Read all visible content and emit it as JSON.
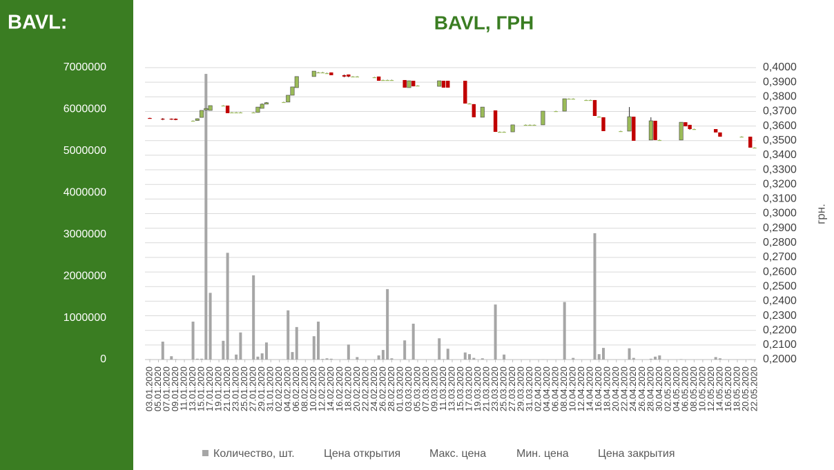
{
  "sidebar_title": "BAVL:",
  "chart_data": {
    "type": "candlestick",
    "title": "BAVL, ГРН",
    "y2label": "грн.",
    "up_color": "#9bbb59",
    "down_color": "#c00000",
    "grid": true,
    "legend": "bottom",
    "xlim": [
      "03.01.2020",
      "22.05.2020"
    ],
    "xticks": [
      "03.01.2020",
      "05.01.2020",
      "07.01.2020",
      "09.01.2020",
      "11.01.2020",
      "13.01.2020",
      "15.01.2020",
      "17.01.2020",
      "19.01.2020",
      "21.01.2020",
      "23.01.2020",
      "25.01.2020",
      "27.01.2020",
      "29.01.2020",
      "31.01.2020",
      "02.02.2020",
      "04.02.2020",
      "06.02.2020",
      "08.02.2020",
      "10.02.2020",
      "12.02.2020",
      "14.02.2020",
      "16.02.2020",
      "18.02.2020",
      "20.02.2020",
      "22.02.2020",
      "24.02.2020",
      "26.02.2020",
      "28.02.2020",
      "01.03.2020",
      "03.03.2020",
      "05.03.2020",
      "07.03.2020",
      "09.03.2020",
      "11.03.2020",
      "13.03.2020",
      "15.03.2020",
      "17.03.2020",
      "19.03.2020",
      "21.03.2020",
      "23.03.2020",
      "25.03.2020",
      "27.03.2020",
      "29.03.2020",
      "31.03.2020",
      "02.04.2020",
      "04.04.2020",
      "06.04.2020",
      "08.04.2020",
      "10.04.2020",
      "12.04.2020",
      "14.04.2020",
      "16.04.2020",
      "18.04.2020",
      "20.04.2020",
      "22.04.2020",
      "24.04.2020",
      "26.04.2020",
      "28.04.2020",
      "30.04.2020",
      "02.05.2020",
      "04.05.2020",
      "06.05.2020",
      "08.05.2020",
      "10.05.2020",
      "12.05.2020",
      "14.05.2020",
      "16.05.2020",
      "18.05.2020",
      "20.05.2020",
      "22.05.2020"
    ],
    "ylim": [
      0,
      7000000
    ],
    "yticks": [
      0,
      1000000,
      2000000,
      3000000,
      4000000,
      5000000,
      6000000,
      7000000
    ],
    "y2lim": [
      0.2,
      0.4
    ],
    "y2ticks": [
      {
        "value": 0.2,
        "label": "0,2000"
      },
      {
        "value": 0.21,
        "label": "0,2100"
      },
      {
        "value": 0.22,
        "label": "0,2200"
      },
      {
        "value": 0.23,
        "label": "0,2300"
      },
      {
        "value": 0.24,
        "label": "0,2400"
      },
      {
        "value": 0.25,
        "label": "0,2500"
      },
      {
        "value": 0.26,
        "label": "0,2600"
      },
      {
        "value": 0.27,
        "label": "0,2700"
      },
      {
        "value": 0.28,
        "label": "0,2800"
      },
      {
        "value": 0.29,
        "label": "0,2900"
      },
      {
        "value": 0.3,
        "label": "0,3000"
      },
      {
        "value": 0.31,
        "label": "0,3100"
      },
      {
        "value": 0.32,
        "label": "0,3200"
      },
      {
        "value": 0.33,
        "label": "0,3300"
      },
      {
        "value": 0.34,
        "label": "0,3400"
      },
      {
        "value": 0.35,
        "label": "0,3500"
      },
      {
        "value": 0.36,
        "label": "0,3600"
      },
      {
        "value": 0.37,
        "label": "0,3700"
      },
      {
        "value": 0.38,
        "label": "0,3800"
      },
      {
        "value": 0.39,
        "label": "0,3900"
      },
      {
        "value": 0.4,
        "label": "0,4000"
      }
    ],
    "x": [
      "03.01.2020",
      "06.01.2020",
      "08.01.2020",
      "09.01.2020",
      "13.01.2020",
      "14.01.2020",
      "15.01.2020",
      "16.01.2020",
      "17.01.2020",
      "20.01.2020",
      "21.01.2020",
      "22.01.2020",
      "23.01.2020",
      "24.01.2020",
      "27.01.2020",
      "28.01.2020",
      "29.01.2020",
      "30.01.2020",
      "03.02.2020",
      "04.02.2020",
      "05.02.2020",
      "06.02.2020",
      "10.02.2020",
      "11.02.2020",
      "12.02.2020",
      "13.02.2020",
      "14.02.2020",
      "17.02.2020",
      "18.02.2020",
      "19.02.2020",
      "20.02.2020",
      "24.02.2020",
      "25.02.2020",
      "26.02.2020",
      "27.02.2020",
      "28.02.2020",
      "02.03.2020",
      "03.03.2020",
      "04.03.2020",
      "05.03.2020",
      "10.03.2020",
      "11.03.2020",
      "12.03.2020",
      "16.03.2020",
      "17.03.2020",
      "18.03.2020",
      "20.03.2020",
      "23.03.2020",
      "24.03.2020",
      "25.03.2020",
      "27.03.2020",
      "30.03.2020",
      "31.03.2020",
      "01.04.2020",
      "03.04.2020",
      "06.04.2020",
      "08.04.2020",
      "09.04.2020",
      "10.04.2020",
      "13.04.2020",
      "14.04.2020",
      "15.04.2020",
      "16.04.2020",
      "17.04.2020",
      "21.04.2020",
      "23.04.2020",
      "24.04.2020",
      "28.04.2020",
      "29.04.2020",
      "30.04.2020",
      "05.05.2020",
      "06.05.2020",
      "07.05.2020",
      "08.05.2020",
      "13.05.2020",
      "14.05.2020",
      "19.05.2020",
      "21.05.2020",
      "22.05.2020"
    ],
    "series": [
      {
        "name": "Количество, шт.",
        "color": "#a6a6a6",
        "axis": "y",
        "values": [
          5000,
          430000,
          80000,
          10000,
          910000,
          20000,
          20000,
          6850000,
          1600000,
          450000,
          2560000,
          10000,
          120000,
          650000,
          2020000,
          70000,
          150000,
          410000,
          5000,
          1180000,
          180000,
          780000,
          560000,
          910000,
          15000,
          30000,
          20000,
          5000,
          360000,
          5000,
          60000,
          5000,
          100000,
          230000,
          1690000,
          30000,
          460000,
          0,
          860000,
          0,
          510000,
          10000,
          260000,
          170000,
          130000,
          40000,
          30000,
          1320000,
          5000,
          120000,
          0,
          0,
          0,
          0,
          5000,
          0,
          1380000,
          0,
          40000,
          0,
          0,
          3030000,
          130000,
          280000,
          0,
          270000,
          40000,
          20000,
          70000,
          100000,
          10000,
          0,
          0,
          0,
          60000,
          30000,
          0,
          5000,
          0
        ]
      },
      {
        "name": "Цена открытия",
        "axis": "y2",
        "values": [
          0.3655,
          0.365,
          0.365,
          0.365,
          0.3636,
          0.3638,
          0.3659,
          0.371,
          0.3707,
          0.374,
          0.374,
          0.3693,
          0.3693,
          0.3693,
          0.3693,
          0.3693,
          0.3721,
          0.375,
          0.3764,
          0.3764,
          0.3811,
          0.3863,
          0.3939,
          0.3967,
          0.3967,
          0.3962,
          0.3967,
          0.3948,
          0.3953,
          0.3939,
          0.3939,
          0.3934,
          0.3939,
          0.3915,
          0.3915,
          0.3915,
          0.3915,
          0.3863,
          0.391,
          0.3877,
          0.3872,
          0.391,
          0.391,
          0.391,
          0.3754,
          0.375,
          0.366,
          0.3707,
          0.356,
          0.356,
          0.356,
          0.3608,
          0.3608,
          0.3608,
          0.3608,
          0.3702,
          0.3702,
          0.3787,
          0.3787,
          0.3778,
          0.3778,
          0.3778,
          0.3664,
          0.366,
          0.3565,
          0.3565,
          0.3664,
          0.3504,
          0.3636,
          0.3504,
          0.3504,
          0.3626,
          0.3608,
          0.3579,
          0.3579,
          0.3556,
          0.3527,
          0.3527,
          0.3452
        ]
      },
      {
        "name": "Макс. цена",
        "axis": "y2",
        "values": [
          0.3657,
          0.3655,
          0.3652,
          0.3652,
          0.3638,
          0.3652,
          0.3707,
          0.3722,
          0.374,
          0.3742,
          0.374,
          0.3695,
          0.3695,
          0.3695,
          0.3695,
          0.373,
          0.3754,
          0.3764,
          0.3766,
          0.3811,
          0.3868,
          0.3939,
          0.3976,
          0.397,
          0.397,
          0.3965,
          0.3967,
          0.3953,
          0.3953,
          0.3941,
          0.3941,
          0.3936,
          0.3939,
          0.3917,
          0.3917,
          0.3917,
          0.3915,
          0.391,
          0.391,
          0.3879,
          0.391,
          0.391,
          0.391,
          0.391,
          0.3756,
          0.375,
          0.373,
          0.3707,
          0.3562,
          0.3562,
          0.3608,
          0.361,
          0.361,
          0.361,
          0.3702,
          0.3704,
          0.3787,
          0.3789,
          0.3789,
          0.378,
          0.378,
          0.3778,
          0.3666,
          0.366,
          0.3567,
          0.373,
          0.3664,
          0.366,
          0.3636,
          0.3506,
          0.3626,
          0.3626,
          0.3608,
          0.3581,
          0.3579,
          0.3556,
          0.3529,
          0.3527,
          0.3454
        ]
      },
      {
        "name": "Мин. цена",
        "axis": "y2",
        "values": [
          0.3652,
          0.364,
          0.3642,
          0.364,
          0.3634,
          0.3636,
          0.3659,
          0.371,
          0.3707,
          0.3738,
          0.3688,
          0.369,
          0.369,
          0.369,
          0.369,
          0.3693,
          0.3721,
          0.375,
          0.3762,
          0.3764,
          0.3811,
          0.3863,
          0.3939,
          0.3965,
          0.3965,
          0.396,
          0.3948,
          0.3934,
          0.3934,
          0.3937,
          0.3937,
          0.3932,
          0.391,
          0.3913,
          0.3913,
          0.3913,
          0.3863,
          0.3863,
          0.3872,
          0.3875,
          0.3872,
          0.3863,
          0.3863,
          0.3754,
          0.3752,
          0.366,
          0.366,
          0.356,
          0.3558,
          0.3558,
          0.356,
          0.3606,
          0.3606,
          0.3606,
          0.3608,
          0.37,
          0.3702,
          0.3785,
          0.3785,
          0.3776,
          0.3776,
          0.3669,
          0.3662,
          0.3565,
          0.3563,
          0.3565,
          0.3499,
          0.3504,
          0.3504,
          0.3502,
          0.3504,
          0.3598,
          0.3574,
          0.3577,
          0.3556,
          0.3527,
          0.3525,
          0.3452,
          0.345
        ]
      },
      {
        "name": "Цена закрытия",
        "axis": "y2",
        "values": [
          0.3653,
          0.3645,
          0.3645,
          0.3642,
          0.3636,
          0.365,
          0.3707,
          0.372,
          0.374,
          0.374,
          0.3688,
          0.3693,
          0.3693,
          0.3693,
          0.3693,
          0.373,
          0.375,
          0.376,
          0.3764,
          0.3811,
          0.3868,
          0.3939,
          0.3976,
          0.3967,
          0.3967,
          0.3962,
          0.3948,
          0.3939,
          0.3939,
          0.3939,
          0.3939,
          0.3934,
          0.391,
          0.3915,
          0.3915,
          0.3915,
          0.3863,
          0.391,
          0.3872,
          0.3877,
          0.391,
          0.3863,
          0.3863,
          0.3754,
          0.3754,
          0.366,
          0.373,
          0.356,
          0.356,
          0.356,
          0.3608,
          0.3608,
          0.3608,
          0.3608,
          0.3702,
          0.3702,
          0.3787,
          0.3787,
          0.3787,
          0.3778,
          0.3778,
          0.3669,
          0.3664,
          0.3565,
          0.3565,
          0.3664,
          0.3499,
          0.3636,
          0.3504,
          0.3504,
          0.3626,
          0.3598,
          0.3579,
          0.3579,
          0.3556,
          0.3527,
          0.3527,
          0.3452,
          0.3452
        ]
      }
    ]
  }
}
